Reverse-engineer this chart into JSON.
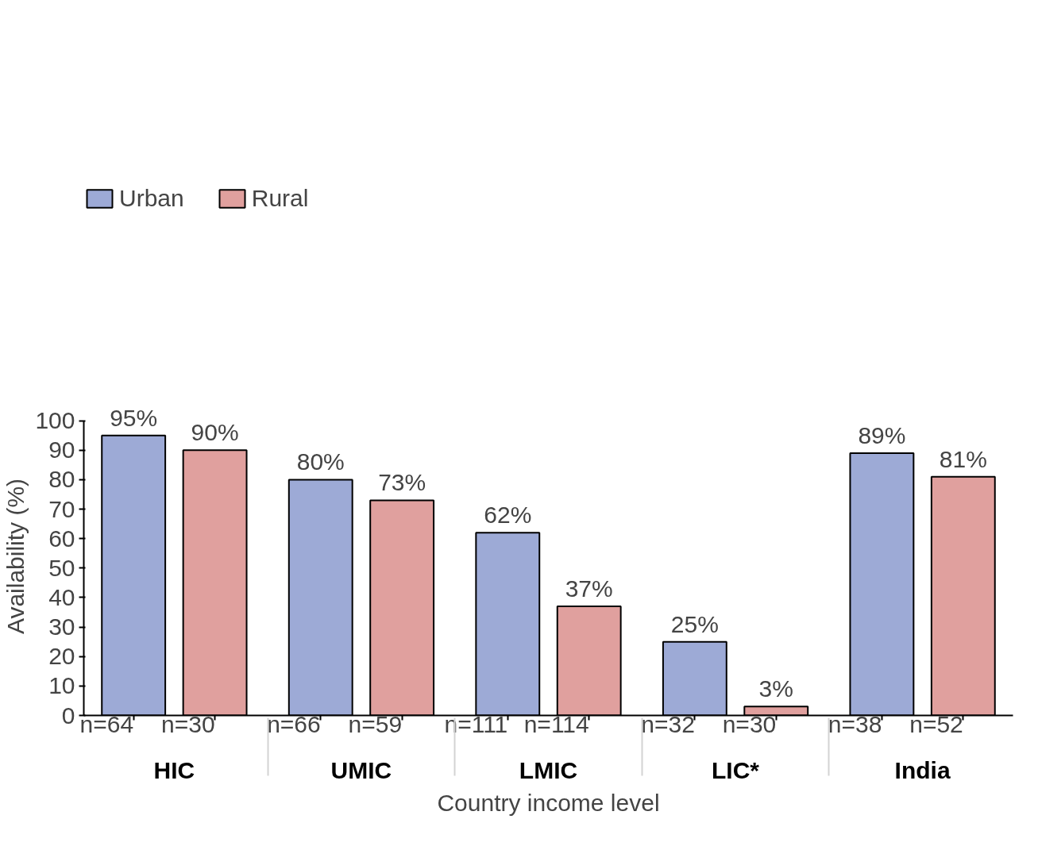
{
  "chart_data": {
    "type": "bar",
    "xlabel": "Country income level",
    "ylabel": "Availability (%)",
    "categories": [
      "HIC",
      "UMIC",
      "LMIC",
      "LIC*",
      "India"
    ],
    "series": [
      {
        "name": "Urban",
        "color": "#9daad6",
        "values": [
          95,
          80,
          62,
          25,
          89
        ],
        "value_labels": [
          "95%",
          "80%",
          "62%",
          "25%",
          "89%"
        ]
      },
      {
        "name": "Rural",
        "color": "#e0a09e",
        "values": [
          90,
          73,
          37,
          3,
          81
        ],
        "value_labels": [
          "90%",
          "73%",
          "37%",
          "3%",
          "81%"
        ]
      }
    ],
    "annotations": [
      "n=64",
      "n=30",
      "n=66",
      "n=59",
      "n=111",
      "n=114",
      "n=32",
      "n=30",
      "n=38",
      "n=52"
    ],
    "ylim": [
      0,
      100
    ],
    "yticks": [
      0,
      10,
      20,
      30,
      40,
      50,
      60,
      70,
      80,
      90,
      100
    ],
    "grid": false,
    "legend": "top left"
  }
}
